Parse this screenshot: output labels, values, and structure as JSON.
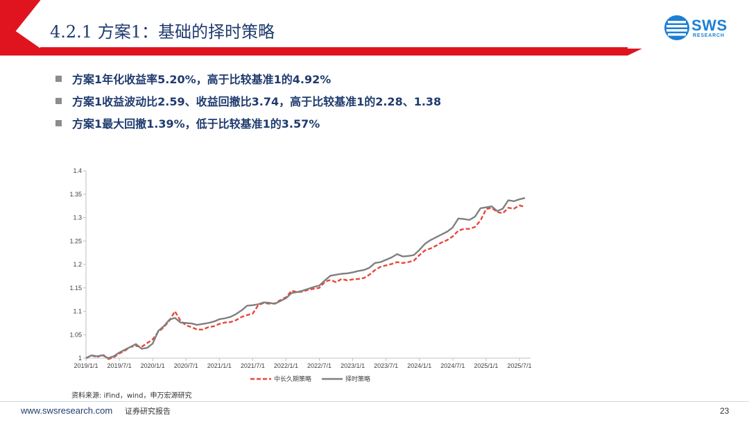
{
  "header": {
    "title": "4.2.1 方案1：基础的择时策略",
    "logo_text": "SWS",
    "logo_sub": "RESEARCH"
  },
  "bullets": [
    "方案1年化收益率5.20%，高于比较基准1的4.92%",
    "方案1收益波动比2.59、收益回撤比3.74，高于比较基准1的2.28、1.38",
    "方案1最大回撤1.39%，低于比较基准1的3.57%"
  ],
  "source": "资料来源: iFind，wind，申万宏源研究",
  "footer": {
    "url": "www.swsresearch.com",
    "label": "证券研究报告",
    "page": "23"
  },
  "colors": {
    "brand_red": "#e0141e",
    "title_blue": "#1f3b6e",
    "logo_blue": "#1c7fd6",
    "series_benchmark": "#e8463a",
    "series_strategy": "#7f7f7f"
  },
  "chart_data": {
    "type": "line",
    "ylim": [
      1,
      1.4
    ],
    "yticks": [
      "1",
      "1.05",
      "1.1",
      "1.15",
      "1.2",
      "1.25",
      "1.3",
      "1.35",
      "1.4"
    ],
    "xticks": [
      "2019/1/1",
      "2019/7/1",
      "2020/1/1",
      "2020/7/1",
      "2021/1/1",
      "2021/7/1",
      "2022/1/1",
      "2022/7/1",
      "2023/1/1",
      "2023/7/1",
      "2024/1/1",
      "2024/7/1",
      "2025/1/1",
      "2025/7/1"
    ],
    "legend_position": "bottom",
    "grid": false,
    "x_months": [
      0,
      1,
      2,
      3,
      4,
      5,
      6,
      7,
      8,
      9,
      10,
      11,
      12,
      13,
      14,
      15,
      16,
      17,
      18,
      19,
      20,
      21,
      22,
      23,
      24,
      25,
      26,
      27,
      28,
      29,
      30,
      31,
      32,
      33,
      34,
      35,
      36,
      37,
      38,
      39,
      40,
      41,
      42,
      43,
      44,
      45,
      46,
      47,
      48,
      49,
      50,
      51,
      52,
      53,
      54,
      55,
      56,
      57,
      58,
      59,
      60,
      61,
      62,
      63,
      64,
      65,
      66,
      67,
      68,
      69,
      70,
      71,
      72,
      73,
      74,
      75,
      76,
      77,
      78,
      79
    ],
    "series": [
      {
        "name": "中长久期策略",
        "style": "dashed",
        "values": [
          1.0,
          1.006,
          1.002,
          1.008,
          0.998,
          1.002,
          1.01,
          1.016,
          1.024,
          1.026,
          1.024,
          1.032,
          1.04,
          1.056,
          1.066,
          1.08,
          1.1,
          1.08,
          1.07,
          1.066,
          1.061,
          1.061,
          1.066,
          1.068,
          1.073,
          1.076,
          1.077,
          1.081,
          1.088,
          1.092,
          1.095,
          1.113,
          1.118,
          1.116,
          1.117,
          1.124,
          1.13,
          1.144,
          1.141,
          1.142,
          1.146,
          1.148,
          1.15,
          1.163,
          1.167,
          1.162,
          1.169,
          1.166,
          1.168,
          1.169,
          1.171,
          1.178,
          1.188,
          1.195,
          1.198,
          1.201,
          1.205,
          1.203,
          1.205,
          1.208,
          1.22,
          1.23,
          1.234,
          1.24,
          1.247,
          1.252,
          1.26,
          1.272,
          1.276,
          1.276,
          1.28,
          1.294,
          1.318,
          1.321,
          1.312,
          1.309,
          1.321,
          1.319,
          1.326,
          1.323
        ]
      },
      {
        "name": "择时策略",
        "style": "solid",
        "values": [
          1.0,
          1.006,
          1.004,
          1.006,
          1.0,
          1.004,
          1.012,
          1.018,
          1.024,
          1.03,
          1.02,
          1.022,
          1.031,
          1.058,
          1.068,
          1.082,
          1.086,
          1.076,
          1.075,
          1.074,
          1.071,
          1.073,
          1.075,
          1.078,
          1.083,
          1.085,
          1.088,
          1.094,
          1.102,
          1.112,
          1.113,
          1.115,
          1.119,
          1.118,
          1.116,
          1.122,
          1.128,
          1.139,
          1.141,
          1.144,
          1.148,
          1.152,
          1.155,
          1.166,
          1.176,
          1.178,
          1.18,
          1.181,
          1.183,
          1.186,
          1.188,
          1.193,
          1.203,
          1.205,
          1.21,
          1.215,
          1.222,
          1.217,
          1.218,
          1.22,
          1.231,
          1.244,
          1.252,
          1.258,
          1.264,
          1.27,
          1.279,
          1.298,
          1.297,
          1.295,
          1.302,
          1.32,
          1.322,
          1.324,
          1.314,
          1.319,
          1.337,
          1.335,
          1.339,
          1.342
        ]
      }
    ]
  }
}
